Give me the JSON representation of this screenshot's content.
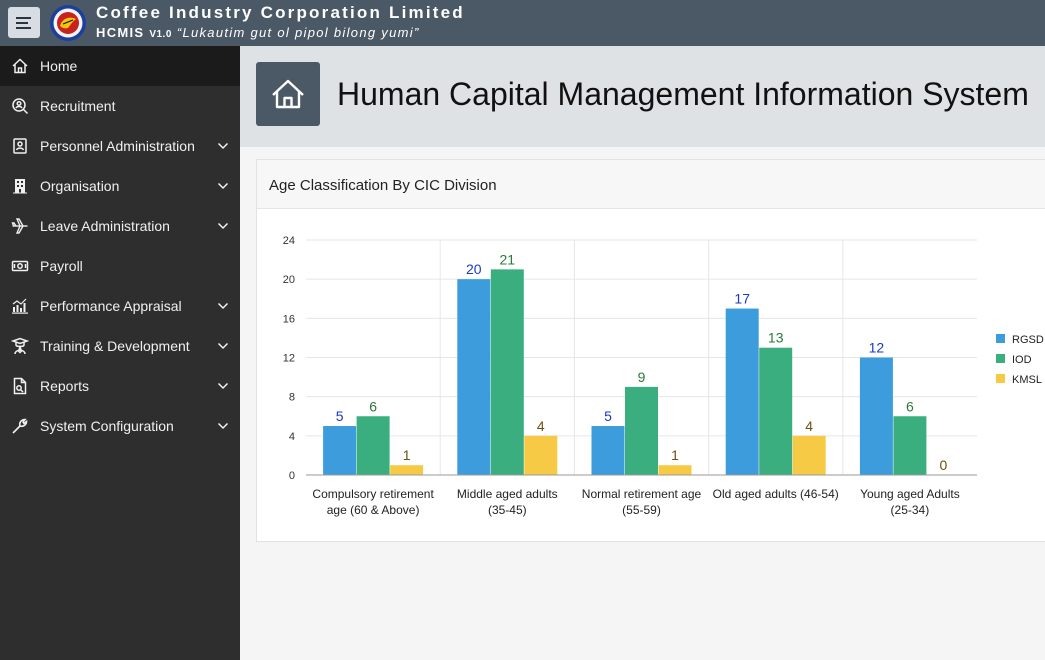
{
  "header": {
    "company": "Coffee Industry Corporation Limited",
    "acronym": "HCMIS",
    "version": "V1.0",
    "motto": "“Lukautim gut ol pipol bilong yumi”"
  },
  "sidebar": {
    "items": [
      {
        "label": "Home",
        "icon": "home-icon",
        "active": true,
        "expandable": false
      },
      {
        "label": "Recruitment",
        "icon": "recruitment-icon",
        "active": false,
        "expandable": false
      },
      {
        "label": "Personnel Administration",
        "icon": "id-card-icon",
        "active": false,
        "expandable": true
      },
      {
        "label": "Organisation",
        "icon": "building-icon",
        "active": false,
        "expandable": true
      },
      {
        "label": "Leave Administration",
        "icon": "plane-icon",
        "active": false,
        "expandable": true
      },
      {
        "label": "Payroll",
        "icon": "money-icon",
        "active": false,
        "expandable": false
      },
      {
        "label": "Performance Appraisal",
        "icon": "bar-chart-icon",
        "active": false,
        "expandable": true
      },
      {
        "label": "Training & Development",
        "icon": "trainer-icon",
        "active": false,
        "expandable": true
      },
      {
        "label": "Reports",
        "icon": "report-icon",
        "active": false,
        "expandable": true
      },
      {
        "label": "System Configuration",
        "icon": "wrench-icon",
        "active": false,
        "expandable": true
      }
    ]
  },
  "hero": {
    "title": "Human Capital Management Information System",
    "icon": "home-icon"
  },
  "card": {
    "title": "Age Classification By CIC Division"
  },
  "chart_data": {
    "type": "bar",
    "title": "Age Classification By CIC Division",
    "categories": [
      [
        "Compulsory retirement",
        "age (60 & Above)"
      ],
      [
        "Middle aged adults",
        "(35-45)"
      ],
      [
        "Normal retirement age",
        "(55-59)"
      ],
      [
        "Old aged adults (46-54)"
      ],
      [
        "Young aged Adults",
        "(25-34)"
      ]
    ],
    "series": [
      {
        "name": "RGSD",
        "values": [
          5,
          20,
          5,
          17,
          12
        ],
        "color": "#3d9ddc",
        "label_color": "#1a3bbf"
      },
      {
        "name": "IOD",
        "values": [
          6,
          21,
          9,
          13,
          6
        ],
        "color": "#3aae7e",
        "label_color": "#2a7a3a"
      },
      {
        "name": "KMSL",
        "values": [
          1,
          4,
          1,
          4,
          0
        ],
        "color": "#f7ca45",
        "label_color": "#6b5010"
      }
    ],
    "ylim": [
      0,
      24
    ],
    "yticks": [
      0,
      4,
      8,
      12,
      16,
      20,
      24
    ],
    "grid": true,
    "legend": "right",
    "xlabel": "",
    "ylabel": ""
  }
}
